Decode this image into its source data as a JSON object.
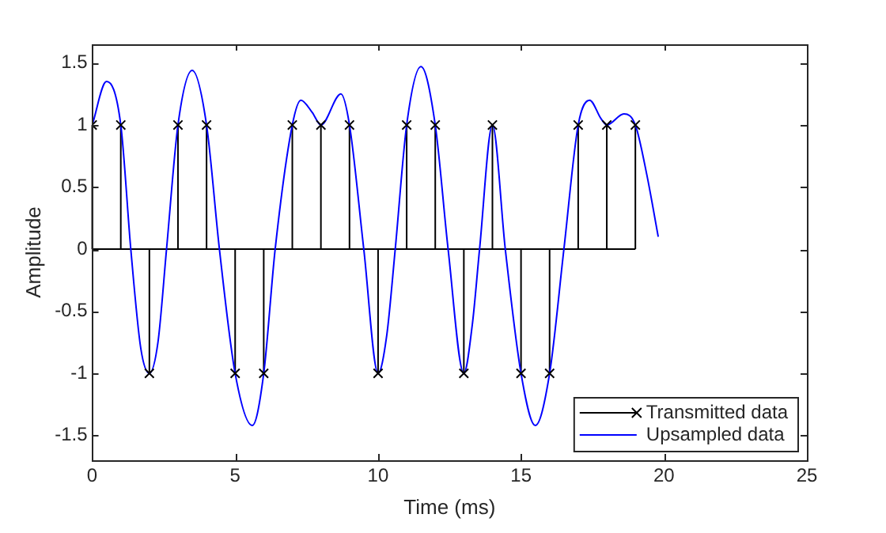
{
  "chart_data": {
    "type": "line",
    "xlabel": "Time (ms)",
    "ylabel": "Amplitude",
    "xlim": [
      0,
      25
    ],
    "xticks": [
      0,
      5,
      10,
      15,
      20,
      25
    ],
    "ylim": [
      -1.7,
      1.65
    ],
    "yticks": [
      -1.5,
      -1,
      -0.5,
      0,
      0.5,
      1,
      1.5
    ],
    "legend": "bottom right",
    "series": [
      {
        "name": "Transmitted data",
        "type": "lollipop",
        "marker": "cross",
        "color": "#000000",
        "x": [
          0,
          1,
          2,
          3,
          4,
          5,
          6,
          7,
          8,
          9,
          10,
          11,
          12,
          13,
          14,
          15,
          16,
          17,
          18,
          19
        ],
        "values": [
          1,
          1,
          -1,
          1,
          1,
          -1,
          -1,
          1,
          1,
          1,
          -1,
          1,
          1,
          -1,
          1,
          -1,
          -1,
          1,
          1,
          1
        ]
      },
      {
        "name": "Upsampled data",
        "marker": "none",
        "color": "#0000ff",
        "x": [
          0,
          0.5,
          1,
          1.35,
          1.7,
          2,
          2.3,
          2.6,
          3,
          3.5,
          4,
          4.45,
          5,
          5.6,
          6,
          6.4,
          7,
          7.3,
          7.7,
          8,
          8.7,
          9,
          9.5,
          10,
          10.3,
          10.6,
          11,
          11.5,
          12,
          12.45,
          13,
          13.3,
          13.55,
          14,
          14.45,
          15,
          15.5,
          16,
          16.5,
          17,
          17.4,
          17.8,
          18,
          18.6,
          19,
          19.4,
          19.8
        ],
        "values": [
          1,
          1.35,
          1,
          0,
          -0.8,
          -1,
          -0.75,
          0,
          1,
          1.44,
          1,
          0,
          -1,
          -1.42,
          -1,
          0,
          1,
          1.2,
          1.1,
          1,
          1.25,
          1,
          0,
          -1,
          -0.7,
          0,
          1,
          1.47,
          1,
          0,
          -1,
          -0.6,
          0,
          1,
          0,
          -1,
          -1.42,
          -1,
          0,
          1,
          1.2,
          1.05,
          1,
          1.09,
          1,
          0.6,
          0.1
        ]
      }
    ]
  }
}
